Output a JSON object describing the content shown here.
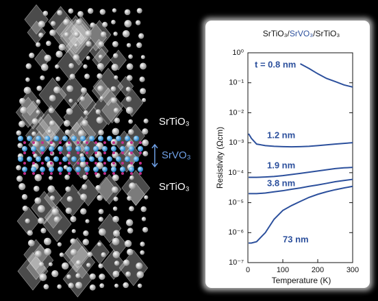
{
  "chart_data": {
    "type": "line",
    "title": [
      "SrTiO₃",
      "/",
      "SrVO₃",
      "/",
      "SrTiO₃"
    ],
    "xlabel": "Temperature (K)",
    "ylabel": "Resistivity (Ωcm)",
    "yscale": "log",
    "xlim": [
      0,
      300
    ],
    "xticks": [
      0,
      100,
      200,
      300
    ],
    "ylim": [
      1e-07,
      1
    ],
    "yticks": [
      {
        "value": 1,
        "label": "10⁰"
      },
      {
        "value": 0.1,
        "label": "10⁻¹"
      },
      {
        "value": 0.01,
        "label": "10⁻²"
      },
      {
        "value": 0.001,
        "label": "10⁻³"
      },
      {
        "value": 0.0001,
        "label": "10⁻⁴"
      },
      {
        "value": 1e-05,
        "label": "10⁻⁵"
      },
      {
        "value": 1e-06,
        "label": "10⁻⁶"
      },
      {
        "value": 1e-07,
        "label": "10⁻⁷"
      }
    ],
    "x": [
      2,
      10,
      25,
      50,
      75,
      100,
      125,
      150,
      175,
      200,
      225,
      250,
      275,
      300
    ],
    "series": [
      {
        "name": "t = 0.8 nm",
        "color": "#2b4f9c",
        "values": [
          null,
          null,
          null,
          null,
          null,
          null,
          null,
          0.43,
          0.3,
          0.2,
          0.14,
          0.11,
          0.085,
          0.072
        ]
      },
      {
        "name": "1.2 nm",
        "color": "#2b4f9c",
        "values": [
          0.002,
          0.0014,
          0.0009,
          0.0008,
          0.00076,
          0.00074,
          0.00073,
          0.00074,
          0.00076,
          0.0008,
          0.00085,
          0.0009,
          0.00095,
          0.001
        ]
      },
      {
        "name": "1.9 nm",
        "color": "#2b4f9c",
        "values": [
          7e-05,
          7e-05,
          7e-05,
          7.2e-05,
          7.5e-05,
          8e-05,
          8.7e-05,
          9.5e-05,
          0.000104,
          0.000114,
          0.000125,
          0.000137,
          0.000145,
          0.00015
        ]
      },
      {
        "name": "3.8 nm",
        "color": "#2b4f9c",
        "values": [
          2e-05,
          2e-05,
          2e-05,
          2.1e-05,
          2.3e-05,
          2.5e-05,
          2.8e-05,
          3.1e-05,
          3.5e-05,
          3.9e-05,
          4.4e-05,
          5e-05,
          5.5e-05,
          6e-05
        ]
      },
      {
        "name": "73 nm",
        "color": "#2b4f9c",
        "values": [
          4.5e-07,
          4.5e-07,
          5e-07,
          1e-06,
          2.8e-06,
          5.5e-06,
          8e-06,
          1.1e-05,
          1.5e-05,
          1.9e-05,
          2.3e-05,
          2.7e-05,
          3.1e-05,
          3.5e-05
        ]
      }
    ]
  },
  "structure_labels": [
    "SrTiO₃",
    "SrVO₃",
    "SrTiO₃"
  ]
}
